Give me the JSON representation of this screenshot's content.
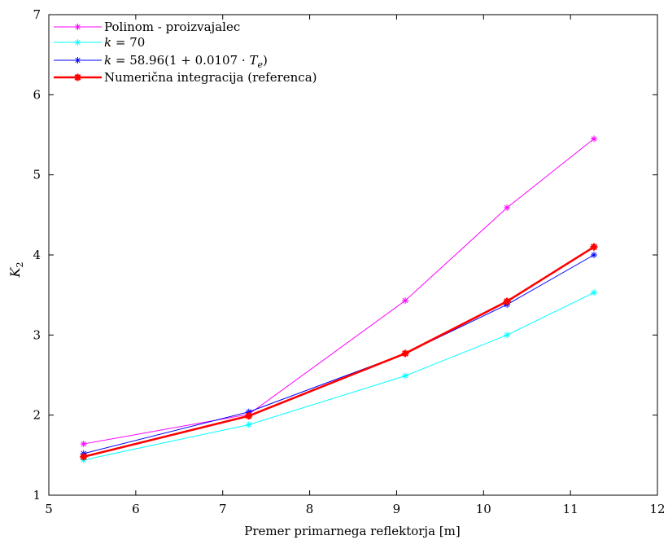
{
  "chart_data": {
    "type": "line",
    "xlabel": "Premer primarnega reflektorja [m]",
    "ylabel": "K",
    "ylabel_subscript": "2",
    "xlim": [
      5,
      12
    ],
    "ylim": [
      1,
      7
    ],
    "xticks": [
      5,
      6,
      7,
      8,
      9,
      10,
      11,
      12
    ],
    "yticks": [
      1,
      2,
      3,
      4,
      5,
      6,
      7
    ],
    "grid": false,
    "legend_position": "top-left",
    "x": [
      5.4,
      7.3,
      9.1,
      10.27,
      11.27
    ],
    "series": [
      {
        "name": "Polinom - proizvajalec",
        "color": "#ff00ff",
        "marker": "asterisk",
        "bold": false,
        "values": [
          1.64,
          2.01,
          3.43,
          4.59,
          5.45
        ]
      },
      {
        "name": "k = 70",
        "color": "#00ffff",
        "marker": "asterisk",
        "bold": false,
        "values": [
          1.44,
          1.88,
          2.49,
          3.0,
          3.53
        ]
      },
      {
        "name": "k = 58.96(1 + 0.0107 · Te)",
        "color": "#0000ff",
        "marker": "asterisk",
        "bold": false,
        "values": [
          1.52,
          2.04,
          2.77,
          3.38,
          4.0
        ]
      },
      {
        "name": "Numerična integracija (referenca)",
        "color": "#ff0000",
        "marker": "asterisk",
        "bold": true,
        "values": [
          1.48,
          1.99,
          2.77,
          3.42,
          4.1
        ]
      }
    ]
  }
}
